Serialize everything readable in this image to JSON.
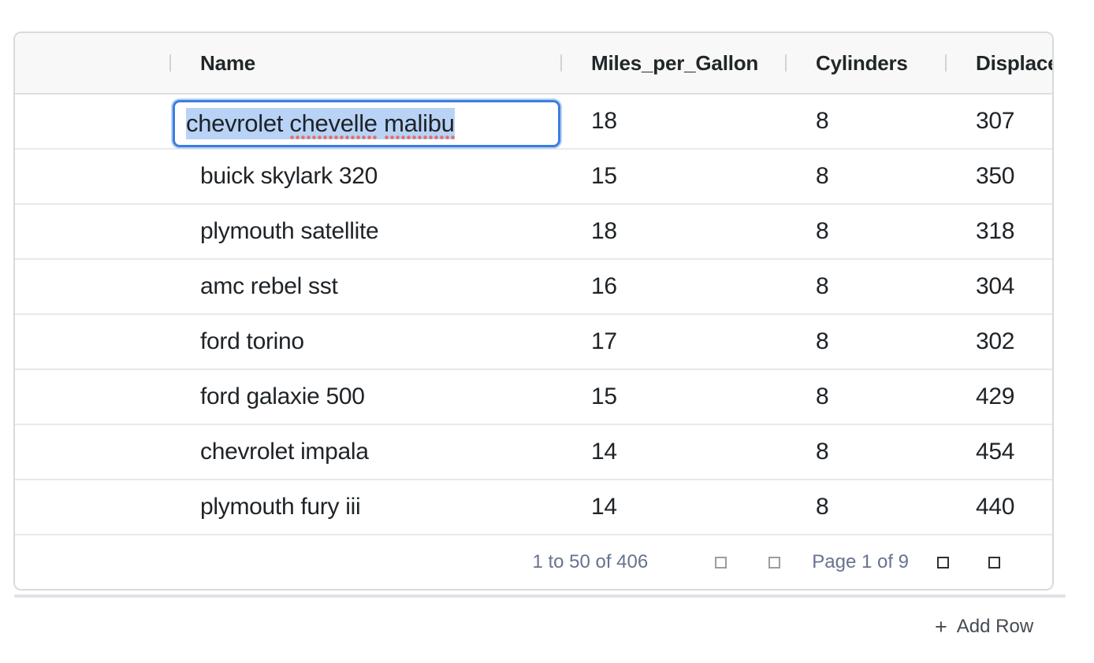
{
  "grid": {
    "columns": [
      {
        "id": "rownum",
        "label": ""
      },
      {
        "id": "name",
        "label": "Name"
      },
      {
        "id": "mpg",
        "label": "Miles_per_Gallon"
      },
      {
        "id": "cylinders",
        "label": "Cylinders"
      },
      {
        "id": "displacement",
        "label": "Displacement"
      }
    ],
    "rows": [
      {
        "name": "chevrolet chevelle malibu",
        "mpg": "18",
        "cylinders": "8",
        "displacement": "307"
      },
      {
        "name": "buick skylark 320",
        "mpg": "15",
        "cylinders": "8",
        "displacement": "350"
      },
      {
        "name": "plymouth satellite",
        "mpg": "18",
        "cylinders": "8",
        "displacement": "318"
      },
      {
        "name": "amc rebel sst",
        "mpg": "16",
        "cylinders": "8",
        "displacement": "304"
      },
      {
        "name": "ford torino",
        "mpg": "17",
        "cylinders": "8",
        "displacement": "302"
      },
      {
        "name": "ford galaxie 500",
        "mpg": "15",
        "cylinders": "8",
        "displacement": "429"
      },
      {
        "name": "chevrolet impala",
        "mpg": "14",
        "cylinders": "8",
        "displacement": "454"
      },
      {
        "name": "plymouth fury iii",
        "mpg": "14",
        "cylinders": "8",
        "displacement": "440"
      }
    ]
  },
  "editor": {
    "row_index": 0,
    "column": "Name",
    "full_value": "chevrolet chevelle malibu",
    "parts": [
      {
        "text": "chevrolet ",
        "misspelled": false
      },
      {
        "text": "chevelle",
        "misspelled": true
      },
      {
        "text": " ",
        "misspelled": false
      },
      {
        "text": "malibu",
        "misspelled": true
      }
    ]
  },
  "pagination": {
    "range_label": "1 to 50 of 406",
    "page_label": "Page 1 of 9",
    "icons": {
      "first_page": "square-placeholder-icon",
      "previous_page": "square-placeholder-icon",
      "next_page": "square-placeholder-icon",
      "last_page": "square-placeholder-icon"
    }
  },
  "footer": {
    "plus_icon": "+",
    "add_row_label": "Add Row"
  },
  "colors": {
    "editor_border": "#3c7de0",
    "selection_background": "#b9d3f7",
    "spellcheck_underline": "#e4706a",
    "header_background": "#f8f8f8",
    "row_border": "#e6e9ed",
    "pagination_text": "#67738e"
  }
}
